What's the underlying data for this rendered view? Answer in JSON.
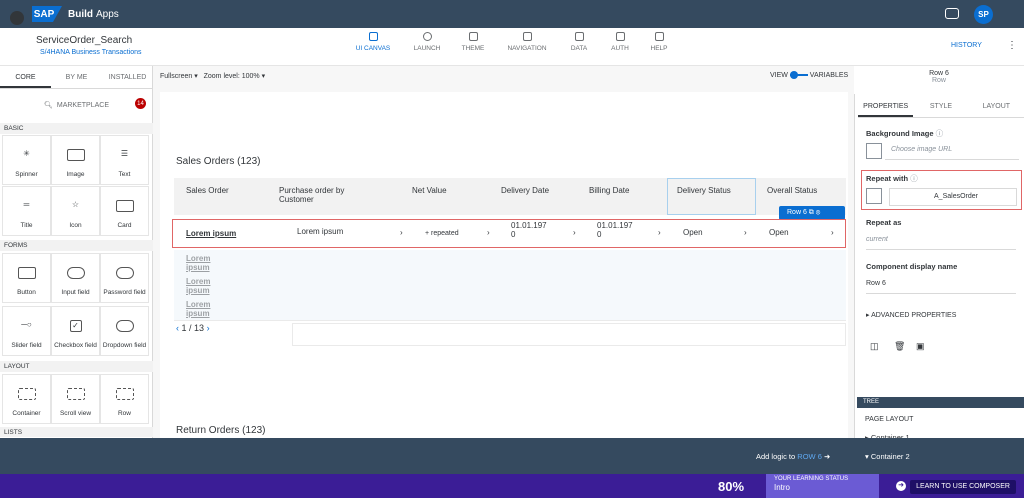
{
  "shell": {
    "brand": "SAP",
    "title_bold": "Build",
    "title": "Apps",
    "avatar": "SP"
  },
  "app": {
    "name": "ServiceOrder_Search",
    "subtitle": "S/4HANA Business Transactions",
    "history": "HISTORY"
  },
  "nav": [
    {
      "label": "UI CANVAS",
      "active": true
    },
    {
      "label": "LAUNCH"
    },
    {
      "label": "THEME"
    },
    {
      "label": "NAVIGATION"
    },
    {
      "label": "DATA"
    },
    {
      "label": "AUTH"
    },
    {
      "label": "HELP"
    }
  ],
  "left": {
    "tabs": [
      "CORE",
      "BY ME",
      "INSTALLED"
    ],
    "marketplace": "MARKETPLACE",
    "badge": "14",
    "sections": {
      "basic": "BASIC",
      "forms": "FORMS",
      "layout": "LAYOUT",
      "lists": "LISTS"
    },
    "basic": [
      "Spinner",
      "Image",
      "Text",
      "Title",
      "Icon",
      "Card"
    ],
    "forms": [
      "Button",
      "Input field",
      "Password field",
      "Slider field",
      "Checkbox field",
      "Dropdown field"
    ],
    "layout": [
      "Container",
      "Scroll view",
      "Row"
    ]
  },
  "canvas": {
    "fullscreen": "Fullscreen",
    "zoom": "Zoom level: 100%",
    "view": "VIEW",
    "variables": "VARIABLES",
    "sales_title": "Sales Orders (123)",
    "return_title": "Return Orders (123)",
    "row_tag": "Row 6",
    "columns": [
      "Sales Order",
      "Purchase order by Customer",
      "Net Value",
      "Delivery Date",
      "Billing Date",
      "Delivery Status",
      "Overall Status"
    ],
    "rows": [
      [
        "Lorem ipsum",
        "Lorem ipsum",
        "+ repeated",
        "01.01.197 0",
        "01.01.197 0",
        "Open",
        "Open"
      ]
    ],
    "pager": "1 / 13",
    "add_logic": "Add logic to",
    "add_logic_target": "ROW 6"
  },
  "right": {
    "comp": "Row 6",
    "comp_type": "Row",
    "tabs": [
      "PROPERTIES",
      "STYLE",
      "LAYOUT"
    ],
    "bg_label": "Background Image",
    "bg_placeholder": "Choose image URL",
    "repeat_label": "Repeat with",
    "repeat_value": "A_SalesOrder",
    "repeat_as_label": "Repeat as",
    "repeat_as_value": "current",
    "display_label": "Component display name",
    "display_value": "Row 6",
    "advanced": "ADVANCED PROPERTIES",
    "tree": "TREE",
    "page_layout": "PAGE LAYOUT",
    "tree_items": [
      "Container 1",
      "Container 2"
    ]
  },
  "status": {
    "pct": "80%",
    "learn_label": "YOUR LEARNING STATUS",
    "learn_value": "Intro",
    "cta": "LEARN TO USE COMPOSER"
  }
}
